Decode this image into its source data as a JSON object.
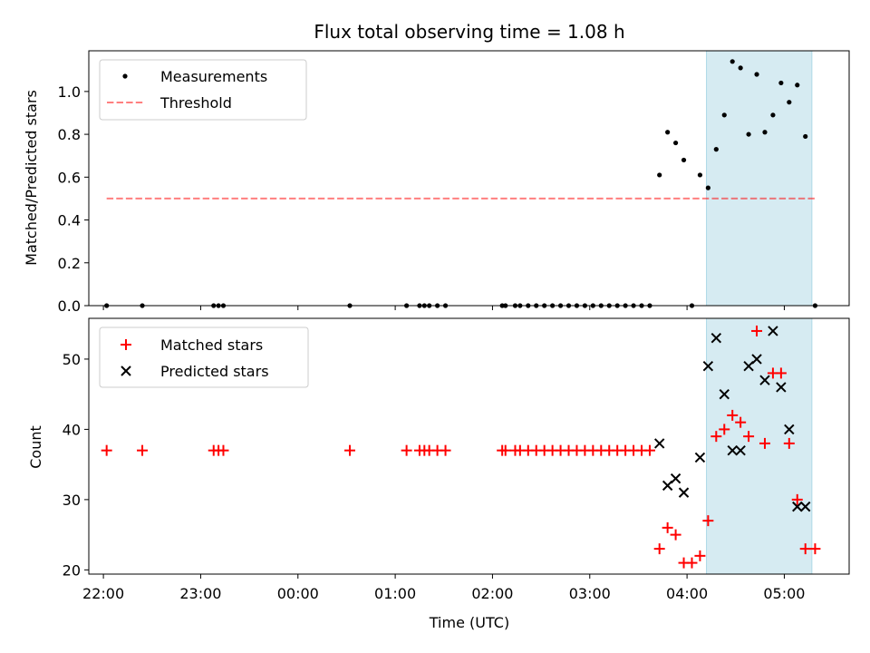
{
  "chart_data": [
    {
      "type": "scatter",
      "title": "Flux total observing time = 1.08 h",
      "ylabel": "Matched/Predicted stars",
      "xlim": [
        "21:51",
        "05:40"
      ],
      "ylim": [
        0,
        1.19
      ],
      "yticks": [
        "0.0",
        "0.2",
        "0.4",
        "0.6",
        "0.8",
        "1.0"
      ],
      "legend": "top-left",
      "legend_labels": [
        "Measurements",
        "Threshold"
      ],
      "highlight_span": [
        "04:12",
        "05:17"
      ],
      "threshold": {
        "value": 0.5,
        "from": "22:02",
        "to": "05:19"
      },
      "series": [
        {
          "name": "Measurements",
          "color": "#000000",
          "marker": "dot",
          "points": [
            [
              "22:02",
              0
            ],
            [
              "22:24",
              0
            ],
            [
              "23:08",
              0
            ],
            [
              "23:11",
              0
            ],
            [
              "23:14",
              0
            ],
            [
              "00:32",
              0
            ],
            [
              "01:07",
              0
            ],
            [
              "01:15",
              0
            ],
            [
              "01:18",
              0
            ],
            [
              "01:21",
              0
            ],
            [
              "01:26",
              0
            ],
            [
              "01:31",
              0
            ],
            [
              "02:06",
              0
            ],
            [
              "02:08",
              0
            ],
            [
              "02:14",
              0
            ],
            [
              "02:17",
              0
            ],
            [
              "02:22",
              0
            ],
            [
              "02:27",
              0
            ],
            [
              "02:32",
              0
            ],
            [
              "02:37",
              0
            ],
            [
              "02:42",
              0
            ],
            [
              "02:47",
              0
            ],
            [
              "02:52",
              0
            ],
            [
              "02:57",
              0
            ],
            [
              "03:02",
              0
            ],
            [
              "03:07",
              0
            ],
            [
              "03:12",
              0
            ],
            [
              "03:17",
              0
            ],
            [
              "03:22",
              0
            ],
            [
              "03:27",
              0
            ],
            [
              "03:32",
              0
            ],
            [
              "03:37",
              0
            ],
            [
              "03:43",
              0.61
            ],
            [
              "03:48",
              0.81
            ],
            [
              "03:53",
              0.76
            ],
            [
              "03:58",
              0.68
            ],
            [
              "04:03",
              0
            ],
            [
              "04:08",
              0.61
            ],
            [
              "04:13",
              0.55
            ],
            [
              "04:18",
              0.73
            ],
            [
              "04:23",
              0.89
            ],
            [
              "04:28",
              1.14
            ],
            [
              "04:33",
              1.11
            ],
            [
              "04:38",
              0.8
            ],
            [
              "04:43",
              1.08
            ],
            [
              "04:48",
              0.81
            ],
            [
              "04:53",
              0.89
            ],
            [
              "04:58",
              1.04
            ],
            [
              "05:03",
              0.95
            ],
            [
              "05:08",
              1.03
            ],
            [
              "05:13",
              0.79
            ],
            [
              "05:19",
              0
            ]
          ]
        }
      ]
    },
    {
      "type": "scatter",
      "xlabel": "Time (UTC)",
      "ylabel": "Count",
      "xlim": [
        "21:51",
        "05:40"
      ],
      "ylim": [
        19.4,
        55.8
      ],
      "xticks": [
        "22:00",
        "23:00",
        "00:00",
        "01:00",
        "02:00",
        "03:00",
        "04:00",
        "05:00"
      ],
      "yticks": [
        "20",
        "30",
        "40",
        "50"
      ],
      "legend": "top-left",
      "highlight_span": [
        "04:12",
        "05:17"
      ],
      "series": [
        {
          "name": "Matched stars",
          "color": "#ff0000",
          "marker": "plus",
          "points": [
            [
              "22:02",
              37
            ],
            [
              "22:24",
              37
            ],
            [
              "23:08",
              37
            ],
            [
              "23:11",
              37
            ],
            [
              "23:14",
              37
            ],
            [
              "00:32",
              37
            ],
            [
              "01:07",
              37
            ],
            [
              "01:15",
              37
            ],
            [
              "01:18",
              37
            ],
            [
              "01:21",
              37
            ],
            [
              "01:26",
              37
            ],
            [
              "01:31",
              37
            ],
            [
              "02:06",
              37
            ],
            [
              "02:08",
              37
            ],
            [
              "02:14",
              37
            ],
            [
              "02:17",
              37
            ],
            [
              "02:22",
              37
            ],
            [
              "02:27",
              37
            ],
            [
              "02:32",
              37
            ],
            [
              "02:37",
              37
            ],
            [
              "02:42",
              37
            ],
            [
              "02:47",
              37
            ],
            [
              "02:52",
              37
            ],
            [
              "02:57",
              37
            ],
            [
              "03:02",
              37
            ],
            [
              "03:07",
              37
            ],
            [
              "03:12",
              37
            ],
            [
              "03:17",
              37
            ],
            [
              "03:22",
              37
            ],
            [
              "03:27",
              37
            ],
            [
              "03:32",
              37
            ],
            [
              "03:37",
              37
            ],
            [
              "03:43",
              23
            ],
            [
              "03:48",
              26
            ],
            [
              "03:53",
              25
            ],
            [
              "03:58",
              21
            ],
            [
              "04:03",
              21
            ],
            [
              "04:08",
              22
            ],
            [
              "04:13",
              27
            ],
            [
              "04:18",
              39
            ],
            [
              "04:23",
              40
            ],
            [
              "04:28",
              42
            ],
            [
              "04:33",
              41
            ],
            [
              "04:38",
              39
            ],
            [
              "04:43",
              54
            ],
            [
              "04:48",
              38
            ],
            [
              "04:53",
              48
            ],
            [
              "04:58",
              48
            ],
            [
              "05:03",
              38
            ],
            [
              "05:08",
              30
            ],
            [
              "05:13",
              23
            ],
            [
              "05:19",
              23
            ]
          ]
        },
        {
          "name": "Predicted stars",
          "color": "#000000",
          "marker": "x",
          "points": [
            [
              "03:43",
              38
            ],
            [
              "03:48",
              32
            ],
            [
              "03:53",
              33
            ],
            [
              "03:58",
              31
            ],
            [
              "04:08",
              36
            ],
            [
              "04:13",
              49
            ],
            [
              "04:18",
              53
            ],
            [
              "04:23",
              45
            ],
            [
              "04:28",
              37
            ],
            [
              "04:33",
              37
            ],
            [
              "04:38",
              49
            ],
            [
              "04:43",
              50
            ],
            [
              "04:48",
              47
            ],
            [
              "04:53",
              54
            ],
            [
              "04:58",
              46
            ],
            [
              "05:03",
              40
            ],
            [
              "05:08",
              29
            ],
            [
              "05:13",
              29
            ]
          ]
        }
      ]
    }
  ]
}
